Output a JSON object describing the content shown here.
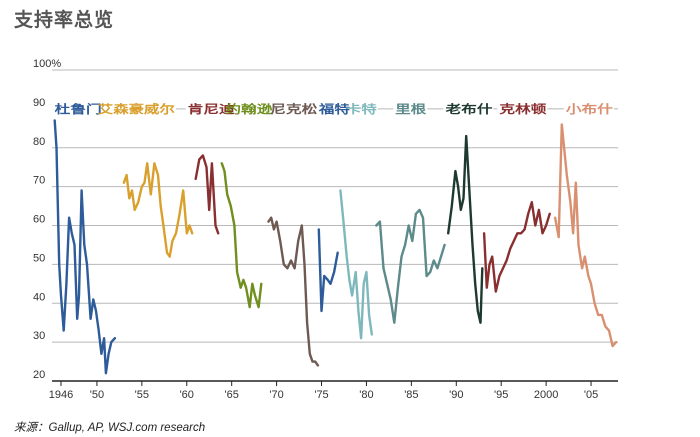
{
  "chart_data": {
    "type": "line",
    "title": "支持率总览",
    "source": "来源：Gallup, AP, WSJ.com research",
    "ylim": [
      20,
      100
    ],
    "xlim": [
      1945,
      2008
    ],
    "y_ticks": [
      {
        "value": 20,
        "label": "20"
      },
      {
        "value": 30,
        "label": "30"
      },
      {
        "value": 40,
        "label": "40"
      },
      {
        "value": 50,
        "label": "50"
      },
      {
        "value": 60,
        "label": "60"
      },
      {
        "value": 70,
        "label": "70"
      },
      {
        "value": 80,
        "label": "80"
      },
      {
        "value": 90,
        "label": "90"
      },
      {
        "value": 100,
        "label": "100%"
      }
    ],
    "x_ticks": [
      {
        "value": 1946,
        "label": "1946"
      },
      {
        "value": 1950,
        "label": "'50"
      },
      {
        "value": 1955,
        "label": "'55"
      },
      {
        "value": 1960,
        "label": "'60"
      },
      {
        "value": 1965,
        "label": "'65"
      },
      {
        "value": 1970,
        "label": "'70"
      },
      {
        "value": 1975,
        "label": "'75"
      },
      {
        "value": 1980,
        "label": "'80"
      },
      {
        "value": 1985,
        "label": "'85"
      },
      {
        "value": 1990,
        "label": "'90"
      },
      {
        "value": 1995,
        "label": "'95"
      },
      {
        "value": 2000,
        "label": "2000"
      },
      {
        "value": 2005,
        "label": "'05"
      }
    ],
    "grid": true,
    "series": [
      {
        "name": "杜鲁门",
        "color": "#2e5b9a",
        "label_x": 1945.3,
        "label_w": 47,
        "points": [
          [
            1945.3,
            87
          ],
          [
            1945.5,
            80
          ],
          [
            1945.8,
            50
          ],
          [
            1946.0,
            42
          ],
          [
            1946.3,
            33
          ],
          [
            1946.6,
            45
          ],
          [
            1946.9,
            62
          ],
          [
            1947.2,
            58
          ],
          [
            1947.5,
            55
          ],
          [
            1947.8,
            36
          ],
          [
            1948.0,
            42
          ],
          [
            1948.3,
            69
          ],
          [
            1948.6,
            55
          ],
          [
            1948.9,
            50
          ],
          [
            1949.1,
            43
          ],
          [
            1949.3,
            36
          ],
          [
            1949.6,
            41
          ],
          [
            1949.9,
            38
          ],
          [
            1950.2,
            33
          ],
          [
            1950.5,
            27
          ],
          [
            1950.8,
            31
          ],
          [
            1951.0,
            22
          ],
          [
            1951.3,
            27
          ],
          [
            1951.6,
            30
          ],
          [
            1952.0,
            31
          ]
        ]
      },
      {
        "name": "艾森豪威尔",
        "color": "#d9a02e",
        "label_x": 1950.1,
        "label_w": 77,
        "points": [
          [
            1953.0,
            71
          ],
          [
            1953.3,
            73
          ],
          [
            1953.6,
            67
          ],
          [
            1953.9,
            69
          ],
          [
            1954.2,
            64
          ],
          [
            1954.6,
            66
          ],
          [
            1955.0,
            70
          ],
          [
            1955.3,
            71
          ],
          [
            1955.6,
            76
          ],
          [
            1956.0,
            68
          ],
          [
            1956.4,
            76
          ],
          [
            1956.8,
            73
          ],
          [
            1957.1,
            65
          ],
          [
            1957.4,
            60
          ],
          [
            1957.8,
            53
          ],
          [
            1958.1,
            52
          ],
          [
            1958.4,
            56
          ],
          [
            1958.8,
            58
          ],
          [
            1959.2,
            63
          ],
          [
            1959.6,
            69
          ],
          [
            1960.0,
            58
          ],
          [
            1960.3,
            60
          ],
          [
            1960.6,
            58
          ]
        ]
      },
      {
        "name": "肯尼迪",
        "color": "#8a2f2f",
        "label_x": 1960.1,
        "label_w": 47,
        "points": [
          [
            1961.0,
            72
          ],
          [
            1961.4,
            77
          ],
          [
            1961.8,
            78
          ],
          [
            1962.2,
            75
          ],
          [
            1962.5,
            64
          ],
          [
            1962.8,
            76
          ],
          [
            1963.2,
            60
          ],
          [
            1963.5,
            58
          ]
        ]
      },
      {
        "name": "约翰逊",
        "color": "#6f8f1f",
        "label_x": 1964.3,
        "label_w": 47,
        "points": [
          [
            1963.9,
            76
          ],
          [
            1964.2,
            74
          ],
          [
            1964.5,
            68
          ],
          [
            1964.9,
            65
          ],
          [
            1965.3,
            60
          ],
          [
            1965.6,
            48
          ],
          [
            1966.0,
            44
          ],
          [
            1966.3,
            46
          ],
          [
            1966.6,
            44
          ],
          [
            1967.0,
            39
          ],
          [
            1967.3,
            45
          ],
          [
            1967.6,
            42
          ],
          [
            1968.0,
            39
          ],
          [
            1968.3,
            45
          ]
        ]
      },
      {
        "name": "尼克松",
        "color": "#6e5a52",
        "label_x": 1969.3,
        "label_w": 47,
        "points": [
          [
            1969.1,
            61
          ],
          [
            1969.4,
            62
          ],
          [
            1969.7,
            59
          ],
          [
            1970.0,
            61
          ],
          [
            1970.4,
            56
          ],
          [
            1970.8,
            50
          ],
          [
            1971.2,
            49
          ],
          [
            1971.6,
            51
          ],
          [
            1972.0,
            49
          ],
          [
            1972.4,
            56
          ],
          [
            1972.8,
            60
          ],
          [
            1973.1,
            50
          ],
          [
            1973.4,
            35
          ],
          [
            1973.7,
            27
          ],
          [
            1974.0,
            25
          ],
          [
            1974.3,
            25
          ],
          [
            1974.6,
            24
          ]
        ]
      },
      {
        "name": "福特",
        "color": "#2e5b9a",
        "label_x": 1974.7,
        "label_w": 31,
        "points": [
          [
            1974.7,
            59
          ],
          [
            1975.0,
            38
          ],
          [
            1975.3,
            47
          ],
          [
            1975.7,
            46
          ],
          [
            1976.0,
            45
          ],
          [
            1976.4,
            48
          ],
          [
            1976.8,
            53
          ]
        ]
      },
      {
        "name": "卡特",
        "color": "#7fb8bc",
        "label_x": 1977.7,
        "label_w": 31,
        "points": [
          [
            1977.1,
            69
          ],
          [
            1977.4,
            62
          ],
          [
            1977.8,
            52
          ],
          [
            1978.1,
            46
          ],
          [
            1978.4,
            42
          ],
          [
            1978.8,
            48
          ],
          [
            1979.1,
            38
          ],
          [
            1979.4,
            31
          ],
          [
            1979.7,
            45
          ],
          [
            1980.0,
            48
          ],
          [
            1980.3,
            37
          ],
          [
            1980.6,
            32
          ]
        ]
      },
      {
        "name": "里根",
        "color": "#5d8a8a",
        "label_x": 1983.2,
        "label_w": 31,
        "points": [
          [
            1981.1,
            60
          ],
          [
            1981.5,
            61
          ],
          [
            1981.9,
            49
          ],
          [
            1982.3,
            45
          ],
          [
            1982.7,
            41
          ],
          [
            1983.1,
            35
          ],
          [
            1983.5,
            44
          ],
          [
            1983.9,
            52
          ],
          [
            1984.3,
            55
          ],
          [
            1984.7,
            60
          ],
          [
            1985.1,
            56
          ],
          [
            1985.5,
            63
          ],
          [
            1985.9,
            64
          ],
          [
            1986.3,
            62
          ],
          [
            1986.7,
            47
          ],
          [
            1987.1,
            48
          ],
          [
            1987.5,
            51
          ],
          [
            1987.9,
            49
          ],
          [
            1988.3,
            52
          ],
          [
            1988.7,
            55
          ]
        ]
      },
      {
        "name": "老布什",
        "color": "#1e3a30",
        "label_x": 1988.8,
        "label_w": 47,
        "points": [
          [
            1989.1,
            58
          ],
          [
            1989.5,
            65
          ],
          [
            1989.9,
            74
          ],
          [
            1990.2,
            70
          ],
          [
            1990.5,
            64
          ],
          [
            1990.8,
            67
          ],
          [
            1991.1,
            83
          ],
          [
            1991.4,
            71
          ],
          [
            1991.8,
            55
          ],
          [
            1992.1,
            45
          ],
          [
            1992.4,
            38
          ],
          [
            1992.7,
            35
          ],
          [
            1992.9,
            49
          ]
        ]
      },
      {
        "name": "克林顿",
        "color": "#8a2f2f",
        "label_x": 1994.8,
        "label_w": 47,
        "points": [
          [
            1993.1,
            58
          ],
          [
            1993.4,
            44
          ],
          [
            1993.7,
            50
          ],
          [
            1994.0,
            52
          ],
          [
            1994.4,
            43
          ],
          [
            1994.8,
            47
          ],
          [
            1995.2,
            49
          ],
          [
            1995.6,
            51
          ],
          [
            1996.0,
            54
          ],
          [
            1996.4,
            56
          ],
          [
            1996.8,
            58
          ],
          [
            1997.2,
            58
          ],
          [
            1997.6,
            59
          ],
          [
            1998.0,
            63
          ],
          [
            1998.4,
            66
          ],
          [
            1998.8,
            60
          ],
          [
            1999.2,
            64
          ],
          [
            1999.6,
            58
          ],
          [
            2000.0,
            60
          ],
          [
            2000.4,
            63
          ]
        ]
      },
      {
        "name": "小布什",
        "color": "#d99070",
        "label_x": 2002.2,
        "label_w": 47,
        "points": [
          [
            2001.0,
            62
          ],
          [
            2001.4,
            57
          ],
          [
            2001.75,
            86
          ],
          [
            2002.0,
            80
          ],
          [
            2002.3,
            73
          ],
          [
            2002.7,
            66
          ],
          [
            2003.0,
            58
          ],
          [
            2003.3,
            71
          ],
          [
            2003.6,
            55
          ],
          [
            2004.0,
            49
          ],
          [
            2004.3,
            52
          ],
          [
            2004.7,
            47
          ],
          [
            2005.0,
            45
          ],
          [
            2005.4,
            40
          ],
          [
            2005.8,
            37
          ],
          [
            2006.2,
            37
          ],
          [
            2006.6,
            34
          ],
          [
            2007.0,
            33
          ],
          [
            2007.4,
            29
          ],
          [
            2007.8,
            30
          ]
        ]
      }
    ]
  }
}
